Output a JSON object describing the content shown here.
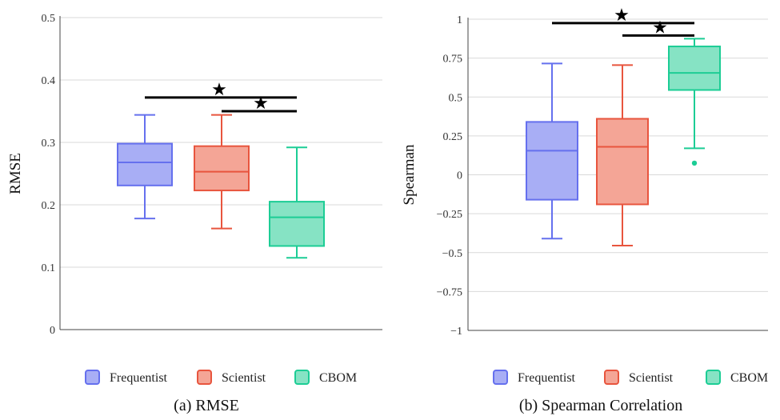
{
  "chart_data": [
    {
      "type": "box",
      "caption": "(a) RMSE",
      "ylabel": "RMSE",
      "ylim": [
        0,
        0.5
      ],
      "yticks": [
        "0",
        "0.1",
        "0.2",
        "0.3",
        "0.4",
        "0.5"
      ],
      "grid": true,
      "categories": [
        "Frequentist",
        "Scientist",
        "CBOM"
      ],
      "boxes": [
        {
          "name": "Frequentist",
          "min": 0.178,
          "q1": 0.231,
          "median": 0.268,
          "q3": 0.298,
          "max": 0.344,
          "outliers": []
        },
        {
          "name": "Scientist",
          "min": 0.162,
          "q1": 0.223,
          "median": 0.253,
          "q3": 0.294,
          "max": 0.344,
          "outliers": []
        },
        {
          "name": "CBOM",
          "min": 0.115,
          "q1": 0.134,
          "median": 0.18,
          "q3": 0.205,
          "max": 0.292,
          "outliers": []
        }
      ],
      "significance": [
        {
          "from": "Frequentist",
          "to": "CBOM",
          "y": 0.372,
          "label": "★"
        },
        {
          "from": "Scientist",
          "to": "CBOM",
          "y": 0.35,
          "label": "★"
        }
      ]
    },
    {
      "type": "box",
      "caption": "(b) Spearman Correlation",
      "ylabel": "Spearman",
      "ylim": [
        -1,
        1
      ],
      "yticks": [
        "−1",
        "−0.75",
        "−0.5",
        "−0.25",
        "0",
        "0.25",
        "0.5",
        "0.75",
        "1"
      ],
      "grid": true,
      "categories": [
        "Frequentist",
        "Scientist",
        "CBOM"
      ],
      "boxes": [
        {
          "name": "Frequentist",
          "min": -0.41,
          "q1": -0.16,
          "median": 0.155,
          "q3": 0.34,
          "max": 0.715,
          "outliers": []
        },
        {
          "name": "Scientist",
          "min": -0.455,
          "q1": -0.19,
          "median": 0.18,
          "q3": 0.36,
          "max": 0.705,
          "outliers": []
        },
        {
          "name": "CBOM",
          "min": 0.17,
          "q1": 0.545,
          "median": 0.655,
          "q3": 0.825,
          "max": 0.875,
          "outliers": [
            0.075
          ]
        }
      ],
      "significance": [
        {
          "from": "Frequentist",
          "to": "CBOM",
          "y": 0.975,
          "label": "★"
        },
        {
          "from": "Scientist",
          "to": "CBOM",
          "y": 0.895,
          "label": "★"
        }
      ]
    }
  ],
  "legend": {
    "position": "bottom",
    "items": [
      {
        "label": "Frequentist",
        "stroke": "#6570ee",
        "fill": "#a8aef5"
      },
      {
        "label": "Scientist",
        "stroke": "#e8553e",
        "fill": "#f4a596"
      },
      {
        "label": "CBOM",
        "stroke": "#1ccd95",
        "fill": "#86e3c4"
      }
    ]
  },
  "colors": {
    "Frequentist": {
      "stroke": "#6570ee",
      "fill": "#a8aef5"
    },
    "Scientist": {
      "stroke": "#e8553e",
      "fill": "#f4a596"
    },
    "CBOM": {
      "stroke": "#1ccd95",
      "fill": "#86e3c4"
    },
    "grid": "#d9d9d9",
    "significance": "#000000"
  }
}
